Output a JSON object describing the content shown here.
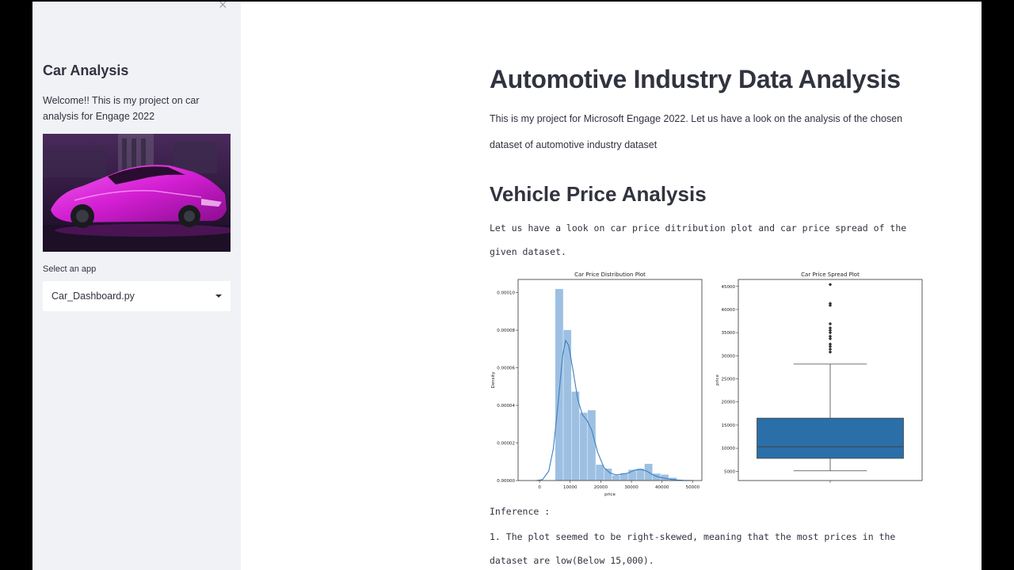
{
  "sidebar": {
    "title": "Car Analysis",
    "welcome": "Welcome!! This is my project on car analysis for Engage 2022",
    "select_label": "Select an app",
    "select_value": "Car_Dashboard.py",
    "close_symbol": "×"
  },
  "main": {
    "title": "Automotive Industry Data Analysis",
    "intro": "This is my project for Microsoft Engage 2022. Let us have a look on the analysis of the chosen dataset of automotive industry dataset",
    "section_title": "Vehicle Price Analysis",
    "section_text": "Let us have a look on car price ditribution plot and car price spread of the given dataset.",
    "inference_title": "Inference :",
    "inference_1": "1. The plot seemed to be right-skewed, meaning that the most prices in the dataset are low(Below 15,000)."
  },
  "chart_data": [
    {
      "type": "bar",
      "title": "Car Price Distribution Plot",
      "xlabel": "price",
      "ylabel": "Density",
      "xlim": [
        -7000,
        53000
      ],
      "ylim": [
        0,
        0.000107
      ],
      "xticks": [
        "0",
        "10000",
        "20000",
        "30000",
        "40000",
        "50000"
      ],
      "yticks": [
        "0.00000",
        "0.00002",
        "0.00004",
        "0.00006",
        "0.00008",
        "0.00010"
      ],
      "color": "#9dc0e2",
      "line_color": "#3b7fc0",
      "bins": [
        {
          "x0": 5100,
          "x1": 7750,
          "density": 0.000102
        },
        {
          "x0": 7750,
          "x1": 10400,
          "density": 8.02e-05
        },
        {
          "x0": 10400,
          "x1": 13050,
          "density": 4.74e-05
        },
        {
          "x0": 13050,
          "x1": 15700,
          "density": 3.62e-05
        },
        {
          "x0": 15700,
          "x1": 18350,
          "density": 3.75e-05
        },
        {
          "x0": 18350,
          "x1": 21000,
          "density": 8.5e-06
        },
        {
          "x0": 21000,
          "x1": 23650,
          "density": 6.4e-06
        },
        {
          "x0": 23650,
          "x1": 26300,
          "density": 2.8e-06
        },
        {
          "x0": 26300,
          "x1": 28950,
          "density": 3.8e-06
        },
        {
          "x0": 28950,
          "x1": 31600,
          "density": 5.8e-06
        },
        {
          "x0": 31600,
          "x1": 34250,
          "density": 6.4e-06
        },
        {
          "x0": 34250,
          "x1": 36900,
          "density": 9e-06
        },
        {
          "x0": 36900,
          "x1": 39550,
          "density": 3.8e-06
        },
        {
          "x0": 39550,
          "x1": 42200,
          "density": 3.2e-06
        },
        {
          "x0": 42200,
          "x1": 44850,
          "density": 1.6e-06
        }
      ],
      "kde": [
        [
          -1000,
          0.0
        ],
        [
          1000,
          5e-07
        ],
        [
          3000,
          5e-06
        ],
        [
          4500,
          1.7e-05
        ],
        [
          6000,
          4e-05
        ],
        [
          7500,
          6.6e-05
        ],
        [
          8500,
          7.45e-05
        ],
        [
          9500,
          7.2e-05
        ],
        [
          11000,
          5.8e-05
        ],
        [
          12500,
          4.3e-05
        ],
        [
          14000,
          3.5e-05
        ],
        [
          15500,
          3.2e-05
        ],
        [
          17000,
          2.7e-05
        ],
        [
          19000,
          1.5e-05
        ],
        [
          21000,
          7e-06
        ],
        [
          23000,
          4e-06
        ],
        [
          25000,
          3e-06
        ],
        [
          27000,
          3.5e-06
        ],
        [
          29000,
          4e-06
        ],
        [
          31000,
          5.5e-06
        ],
        [
          33000,
          6e-06
        ],
        [
          35000,
          5e-06
        ],
        [
          37000,
          3e-06
        ],
        [
          39000,
          1.8e-06
        ],
        [
          41000,
          1.2e-06
        ],
        [
          43000,
          6e-07
        ],
        [
          45000,
          3e-07
        ],
        [
          47000,
          1e-07
        ],
        [
          50000,
          0.0
        ]
      ]
    },
    {
      "type": "box",
      "title": "Car Price Spread Plot",
      "ylabel": "price",
      "ylim": [
        3000,
        46500
      ],
      "yticks": [
        "5000",
        "10000",
        "15000",
        "20000",
        "25000",
        "30000",
        "35000",
        "40000",
        "45000"
      ],
      "color": "#2b6fa8",
      "whisker_low": 5100,
      "q1": 7800,
      "median": 10300,
      "q3": 16500,
      "whisker_high": 28200,
      "outliers": [
        30800,
        31400,
        32000,
        32500,
        33700,
        34200,
        35000,
        35500,
        36000,
        36900,
        40900,
        41300,
        45400
      ]
    }
  ]
}
